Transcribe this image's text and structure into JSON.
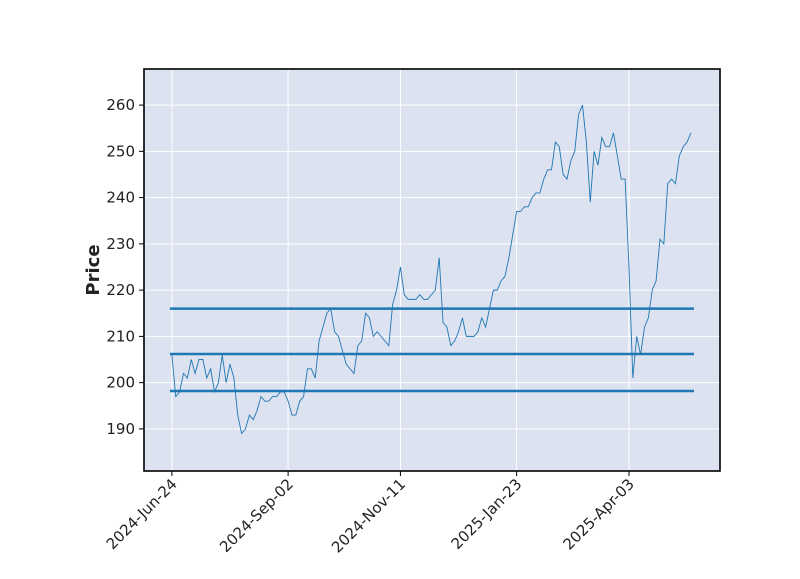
{
  "chart_data": {
    "type": "line",
    "ylabel": "Price",
    "x": [
      0,
      1,
      2,
      3,
      4,
      5,
      6,
      7,
      8,
      9,
      10,
      11,
      12,
      13,
      14,
      15,
      16,
      17,
      18,
      19,
      20,
      21,
      22,
      23,
      24,
      25,
      26,
      27,
      28,
      29,
      30,
      31,
      32,
      33,
      34,
      35,
      36,
      37,
      38,
      39,
      40,
      41,
      42,
      43,
      44,
      45,
      46,
      47,
      48,
      49,
      50,
      51,
      52,
      53,
      54,
      55,
      56,
      57,
      58,
      59,
      60,
      61,
      62,
      63,
      64,
      65,
      66,
      67,
      68,
      69,
      70,
      71,
      72,
      73,
      74,
      75,
      76,
      77,
      78,
      79,
      80,
      81,
      82,
      83,
      84,
      85,
      86,
      87,
      88,
      89,
      90,
      91,
      92,
      93,
      94,
      95,
      96,
      97,
      98,
      99,
      100,
      101,
      102,
      103,
      104,
      105,
      106,
      107,
      108,
      109,
      110,
      111,
      112,
      113,
      114,
      115,
      116,
      117,
      118,
      119,
      120,
      121,
      122,
      123,
      124,
      125,
      126,
      127,
      128,
      129,
      130,
      131,
      132,
      133,
      134
    ],
    "series": [
      {
        "color": "#1f77b4",
        "values": [
          206,
          197,
          198,
          202,
          201,
          205,
          202,
          205,
          205,
          201,
          203,
          198,
          200,
          206,
          200,
          204,
          201,
          193,
          189,
          190,
          193,
          192,
          194,
          197,
          196,
          196,
          197,
          197,
          198,
          198,
          196,
          193,
          193,
          196,
          197,
          203,
          203,
          201,
          209,
          212,
          215,
          216,
          211,
          210,
          207,
          204,
          203,
          202,
          208,
          209,
          215,
          214,
          210,
          211,
          210,
          209,
          208,
          217,
          220,
          225,
          219,
          218,
          218,
          218,
          219,
          218,
          218,
          219,
          220,
          227,
          213,
          212,
          208,
          209,
          211,
          214,
          210,
          210,
          210,
          211,
          214,
          212,
          216,
          220,
          220,
          222,
          223,
          227,
          232,
          237,
          237,
          238,
          238,
          240,
          241,
          241,
          244,
          246,
          246,
          252,
          251,
          245,
          244,
          248,
          250,
          258,
          260,
          252,
          239,
          250,
          247,
          253,
          251,
          251,
          254,
          249,
          244,
          244,
          225,
          201,
          210,
          206,
          212,
          214,
          220,
          222,
          231,
          230,
          243,
          244,
          243,
          249,
          251,
          252,
          254
        ]
      }
    ],
    "hlines": [
      216,
      206.2,
      198.2
    ],
    "hline_color": "#1f77b4",
    "xlim": [
      -7.2,
      141.5
    ],
    "xticks": [
      {
        "value": 0,
        "label": "2024-Jun-24"
      },
      {
        "value": 30,
        "label": "2024-Sep-02"
      },
      {
        "value": 59,
        "label": "2024-Nov-11"
      },
      {
        "value": 89,
        "label": "2025-Jan-23"
      },
      {
        "value": 118,
        "label": "2025-Apr-03"
      }
    ],
    "ylim": [
      180.9,
      267.8
    ],
    "yticks": [
      190,
      200,
      210,
      220,
      230,
      240,
      250,
      260
    ],
    "grid": true,
    "background": "#dce2ef"
  }
}
